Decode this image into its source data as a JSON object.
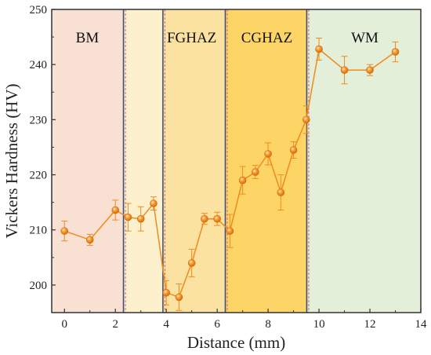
{
  "chart_data": {
    "type": "line",
    "xlabel": "Distance (mm)",
    "ylabel": "Vickers Hardness (HV)",
    "xlim": [
      -0.5,
      14
    ],
    "ylim": [
      195,
      250
    ],
    "xticks": [
      0,
      2,
      4,
      6,
      8,
      10,
      12,
      14
    ],
    "yticks": [
      200,
      210,
      220,
      230,
      240,
      250
    ],
    "xtick_labels": [
      "0",
      "2",
      "4",
      "6",
      "8",
      "10",
      "12",
      "14"
    ],
    "ytick_labels": [
      "200",
      "210",
      "220",
      "230",
      "240",
      "250"
    ],
    "grid": false,
    "zones": [
      {
        "label": "BM",
        "x_start": -0.5,
        "x_end": 2.35,
        "color": "#f8e0d3"
      },
      {
        "label": "",
        "x_start": 2.35,
        "x_end": 3.9,
        "color": "#fdf0cc"
      },
      {
        "label": "FGHAZ",
        "x_start": 3.9,
        "x_end": 6.35,
        "color": "#fce2a0"
      },
      {
        "label": "CGHAZ",
        "x_start": 6.35,
        "x_end": 9.55,
        "color": "#fdd566"
      },
      {
        "label": "WM",
        "x_start": 9.55,
        "x_end": 14,
        "color": "#e3efd8"
      }
    ],
    "series": [
      {
        "color": "#f08a1c",
        "x": [
          0,
          1,
          2,
          2.5,
          3,
          3.5,
          4,
          4.5,
          5,
          5.5,
          6,
          6.5,
          7,
          7.5,
          8,
          8.5,
          9,
          9.5,
          10,
          11,
          12,
          13
        ],
        "y": [
          209.8,
          208.2,
          213.6,
          212.3,
          212.0,
          214.8,
          198.6,
          197.8,
          204.0,
          212.0,
          212.0,
          209.8,
          219.0,
          220.5,
          223.8,
          216.8,
          224.5,
          230.0,
          242.8,
          239.0,
          239.0,
          242.3
        ],
        "error": [
          1.8,
          1.0,
          1.8,
          2.5,
          2.2,
          1.2,
          2.2,
          2.4,
          2.5,
          1.0,
          1.2,
          3.0,
          2.5,
          1.2,
          2.0,
          3.2,
          1.5,
          2.5,
          2.0,
          2.5,
          1.0,
          1.8
        ]
      }
    ]
  }
}
